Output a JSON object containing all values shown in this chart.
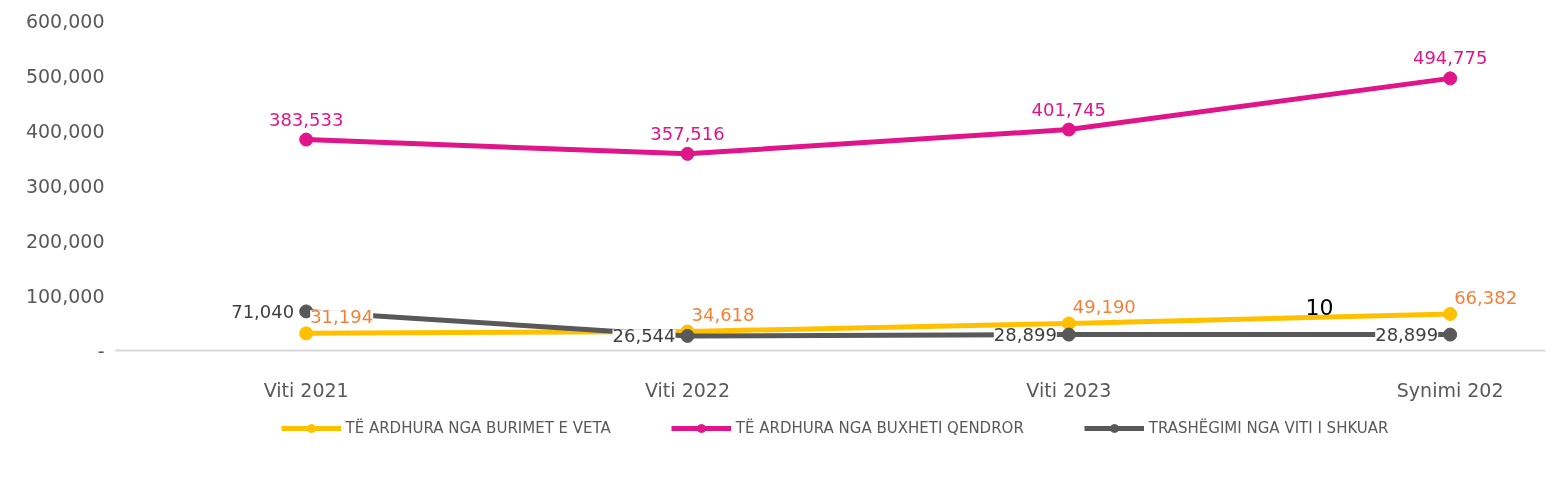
{
  "chart_data": {
    "type": "line",
    "categories": [
      "Viti 2021",
      "Viti 2022",
      "Viti 2023",
      "Synimi 202"
    ],
    "series": [
      {
        "name": "TË ARDHURA NGA BURIMET E VETA",
        "color": "#ffc000",
        "values": [
          31194,
          34618,
          49190,
          66382
        ],
        "value_labels": [
          "31,194",
          "34,618",
          "49,190",
          "66,382"
        ]
      },
      {
        "name": "TË ARDHURA NGA BUXHETI QENDROR",
        "color": "#e0158a",
        "values": [
          383533,
          357516,
          401745,
          494775
        ],
        "value_labels": [
          "383,533",
          "357,516",
          "401,745",
          "494,775"
        ]
      },
      {
        "name": "TRASHËGIMI NGA VITI I SHKUAR",
        "color": "#595959",
        "values": [
          71040,
          26544,
          28899,
          28899
        ],
        "value_labels": [
          "71,040",
          "26,544",
          "28,899",
          "28,899"
        ]
      }
    ],
    "ylim": [
      0,
      600000
    ],
    "yticks": [
      {
        "value": 0,
        "label": "-"
      },
      {
        "value": 100000,
        "label": "100,000"
      },
      {
        "value": 200000,
        "label": "200,000"
      },
      {
        "value": 300000,
        "label": "300,000"
      },
      {
        "value": 400000,
        "label": "400,000"
      },
      {
        "value": 500000,
        "label": "500,000"
      },
      {
        "value": 600000,
        "label": "600,000"
      }
    ],
    "marker": "circle",
    "line_style": "solid",
    "grid": false,
    "legend": "bottom",
    "annotations": [
      "10"
    ]
  }
}
